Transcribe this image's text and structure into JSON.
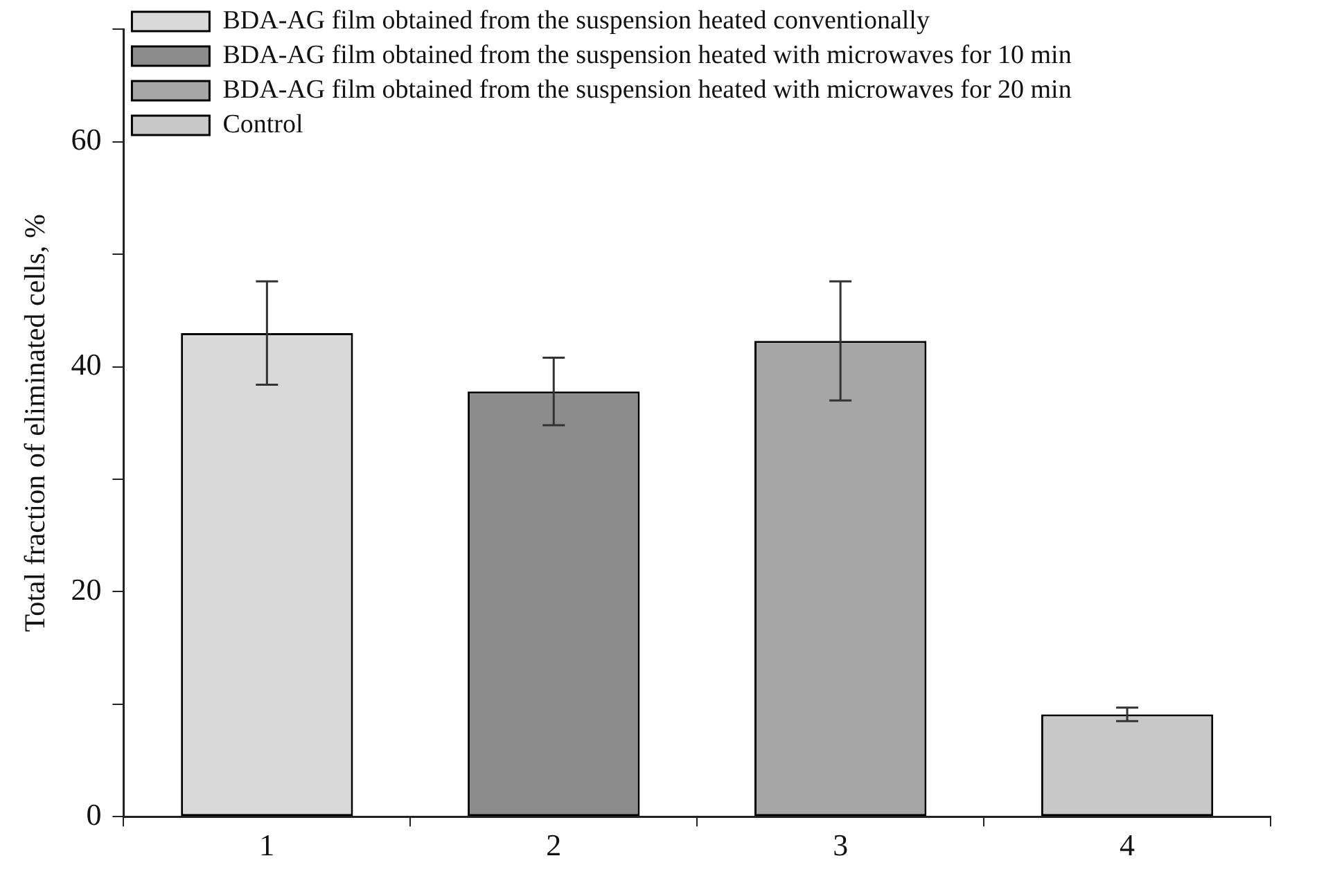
{
  "chart_data": {
    "type": "bar",
    "ylabel": "Total fraction of eliminated cells, %",
    "categories": [
      "1",
      "2",
      "3",
      "4"
    ],
    "series": [
      {
        "name": "BDA-AG film obtained from the suspension heated conventionally",
        "color": "#d9d9d9",
        "values": [
          43.0,
          null,
          null,
          null
        ],
        "errors": [
          4.6,
          null,
          null,
          null
        ]
      },
      {
        "name": "BDA-AG film obtained from the suspension heated with microwaves for 10 min",
        "color": "#8c8c8c",
        "values": [
          null,
          37.8,
          null,
          null
        ],
        "errors": [
          null,
          3.0,
          null,
          null
        ]
      },
      {
        "name": "BDA-AG film obtained from the suspension heated with microwaves for 20 min",
        "color": "#a6a6a6",
        "values": [
          null,
          null,
          42.3,
          null
        ],
        "errors": [
          null,
          null,
          5.3,
          null
        ]
      },
      {
        "name": "Control",
        "color": "#c8c8c8",
        "values": [
          null,
          null,
          null,
          9.1
        ],
        "errors": [
          null,
          null,
          null,
          0.6
        ]
      }
    ],
    "ylim": [
      0,
      70
    ],
    "yticks": [
      0,
      {
        "value": 10,
        "label": null
      },
      20,
      {
        "value": 30,
        "label": null
      },
      40,
      {
        "value": 50,
        "label": null
      },
      60,
      {
        "value": 70,
        "label": null
      }
    ],
    "grid": false,
    "legend": "top left"
  }
}
